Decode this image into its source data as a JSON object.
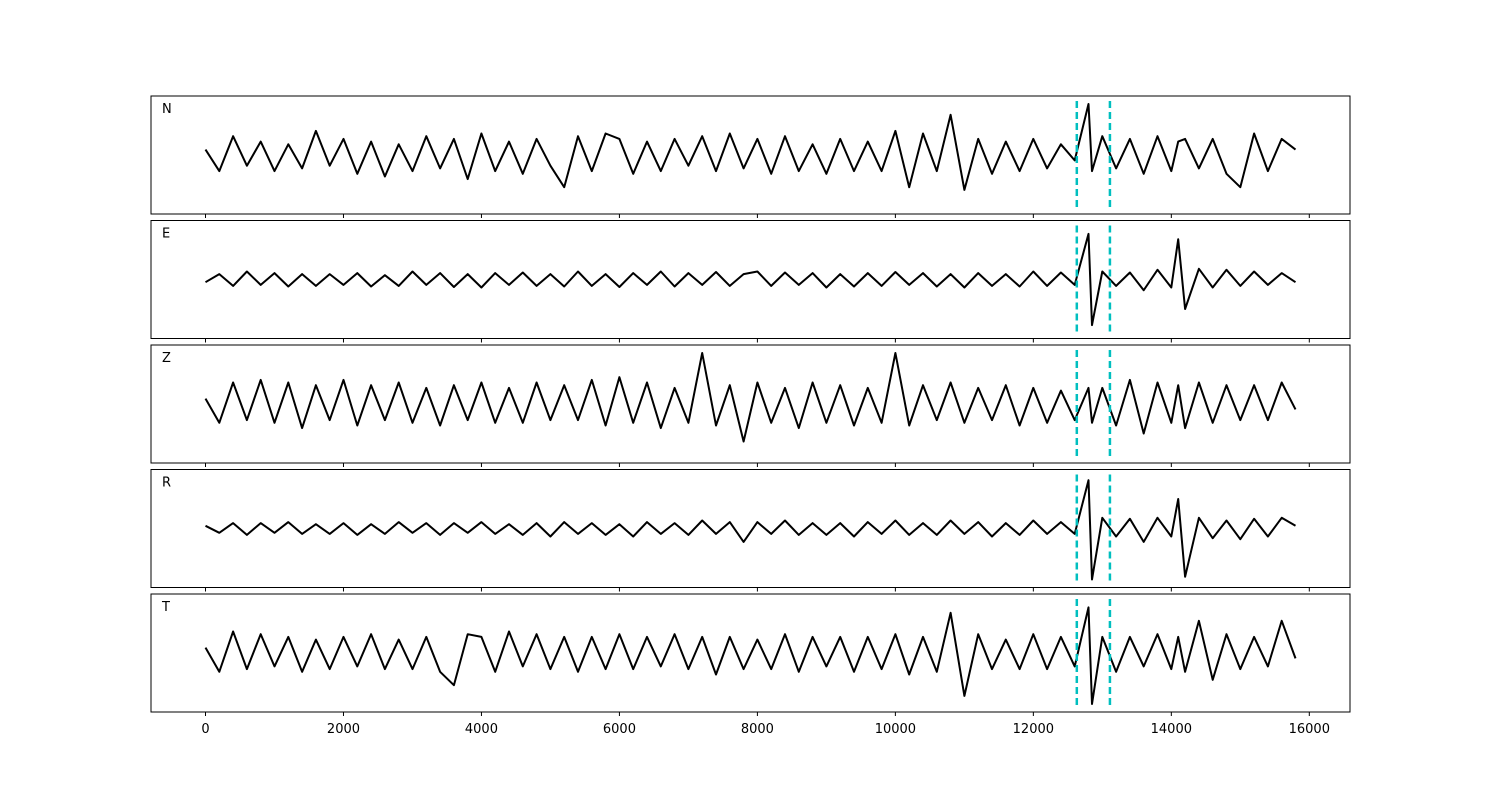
{
  "chart_data": {
    "type": "line",
    "subplots": true,
    "x": [
      0,
      200,
      400,
      600,
      800,
      1000,
      1200,
      1400,
      1600,
      1800,
      2000,
      2200,
      2400,
      2600,
      2800,
      3000,
      3200,
      3400,
      3600,
      3800,
      4000,
      4200,
      4400,
      4600,
      4800,
      5000,
      5200,
      5400,
      5600,
      5800,
      6000,
      6200,
      6400,
      6600,
      6800,
      7000,
      7200,
      7400,
      7600,
      7800,
      8000,
      8200,
      8400,
      8600,
      8800,
      9000,
      9200,
      9400,
      9600,
      9800,
      10000,
      10200,
      10400,
      10600,
      10800,
      11000,
      11200,
      11400,
      11600,
      11800,
      12000,
      12200,
      12400,
      12600,
      12800,
      12850,
      13000,
      13200,
      13400,
      13600,
      13800,
      14000,
      14100,
      14200,
      14400,
      14600,
      14800,
      15000,
      15200,
      15400,
      15600,
      15800
    ],
    "series": [
      {
        "name": "N",
        "color": "#000000",
        "values": [
          0.1,
          -0.3,
          0.35,
          -0.2,
          0.25,
          -0.3,
          0.2,
          -0.25,
          0.45,
          -0.2,
          0.3,
          -0.35,
          0.25,
          -0.4,
          0.2,
          -0.3,
          0.35,
          -0.25,
          0.3,
          -0.45,
          0.4,
          -0.3,
          0.25,
          -0.35,
          0.3,
          -0.2,
          -0.6,
          0.35,
          -0.3,
          0.4,
          0.3,
          -0.35,
          0.25,
          -0.3,
          0.3,
          -0.2,
          0.35,
          -0.3,
          0.4,
          -0.25,
          0.3,
          -0.35,
          0.35,
          -0.3,
          0.2,
          -0.35,
          0.3,
          -0.3,
          0.25,
          -0.3,
          0.45,
          -0.6,
          0.4,
          -0.3,
          0.75,
          -0.65,
          0.3,
          -0.35,
          0.25,
          -0.3,
          0.3,
          -0.25,
          0.2,
          -0.1,
          0.95,
          -0.3,
          0.35,
          -0.25,
          0.3,
          -0.35,
          0.35,
          -0.3,
          0.25,
          0.3,
          -0.25,
          0.3,
          -0.35,
          -0.6,
          0.4,
          -0.3,
          0.3,
          0.1
        ]
      },
      {
        "name": "E",
        "color": "#000000",
        "values": [
          -0.05,
          0.1,
          -0.12,
          0.15,
          -0.1,
          0.12,
          -0.13,
          0.1,
          -0.12,
          0.1,
          -0.1,
          0.12,
          -0.13,
          0.08,
          -0.12,
          0.15,
          -0.1,
          0.12,
          -0.14,
          0.1,
          -0.15,
          0.12,
          -0.1,
          0.13,
          -0.12,
          0.1,
          -0.13,
          0.15,
          -0.12,
          0.1,
          -0.14,
          0.12,
          -0.1,
          0.15,
          -0.13,
          0.12,
          -0.1,
          0.14,
          -0.12,
          0.1,
          0.15,
          -0.12,
          0.13,
          -0.1,
          0.12,
          -0.15,
          0.1,
          -0.13,
          0.12,
          -0.12,
          0.14,
          -0.1,
          0.12,
          -0.13,
          0.1,
          -0.15,
          0.12,
          -0.12,
          0.1,
          -0.13,
          0.15,
          -0.12,
          0.13,
          -0.1,
          0.85,
          -0.85,
          0.15,
          -0.12,
          0.13,
          -0.2,
          0.18,
          -0.15,
          0.75,
          -0.55,
          0.2,
          -0.15,
          0.18,
          -0.12,
          0.15,
          -0.1,
          0.12,
          -0.05
        ]
      },
      {
        "name": "Z",
        "color": "#000000",
        "values": [
          0.1,
          -0.35,
          0.4,
          -0.3,
          0.45,
          -0.35,
          0.4,
          -0.45,
          0.35,
          -0.3,
          0.45,
          -0.4,
          0.35,
          -0.3,
          0.4,
          -0.35,
          0.3,
          -0.4,
          0.35,
          -0.3,
          0.4,
          -0.35,
          0.3,
          -0.35,
          0.4,
          -0.3,
          0.35,
          -0.3,
          0.45,
          -0.4,
          0.5,
          -0.35,
          0.4,
          -0.45,
          0.3,
          -0.35,
          0.95,
          -0.4,
          0.35,
          -0.7,
          0.4,
          -0.35,
          0.3,
          -0.45,
          0.4,
          -0.35,
          0.35,
          -0.4,
          0.3,
          -0.35,
          0.95,
          -0.4,
          0.35,
          -0.3,
          0.4,
          -0.35,
          0.3,
          -0.3,
          0.35,
          -0.4,
          0.3,
          -0.35,
          0.25,
          -0.3,
          0.3,
          -0.35,
          0.3,
          -0.4,
          0.45,
          -0.55,
          0.4,
          -0.35,
          0.35,
          -0.45,
          0.4,
          -0.35,
          0.35,
          -0.3,
          0.35,
          -0.3,
          0.4,
          -0.1
        ]
      },
      {
        "name": "R",
        "color": "#000000",
        "values": [
          0.05,
          -0.08,
          0.1,
          -0.12,
          0.1,
          -0.08,
          0.12,
          -0.1,
          0.08,
          -0.1,
          0.1,
          -0.12,
          0.08,
          -0.1,
          0.12,
          -0.08,
          0.1,
          -0.12,
          0.1,
          -0.08,
          0.12,
          -0.1,
          0.08,
          -0.12,
          0.1,
          -0.15,
          0.12,
          -0.1,
          0.1,
          -0.12,
          0.08,
          -0.15,
          0.12,
          -0.1,
          0.1,
          -0.12,
          0.15,
          -0.1,
          0.12,
          -0.25,
          0.12,
          -0.1,
          0.15,
          -0.12,
          0.1,
          -0.12,
          0.1,
          -0.15,
          0.12,
          -0.1,
          0.15,
          -0.12,
          0.1,
          -0.12,
          0.15,
          -0.1,
          0.12,
          -0.15,
          0.1,
          -0.12,
          0.15,
          -0.1,
          0.12,
          -0.1,
          0.9,
          -0.95,
          0.2,
          -0.15,
          0.18,
          -0.25,
          0.2,
          -0.15,
          0.55,
          -0.9,
          0.2,
          -0.18,
          0.15,
          -0.2,
          0.18,
          -0.15,
          0.2,
          0.05
        ]
      },
      {
        "name": "T",
        "color": "#000000",
        "values": [
          0.1,
          -0.35,
          0.4,
          -0.3,
          0.35,
          -0.25,
          0.3,
          -0.35,
          0.25,
          -0.3,
          0.3,
          -0.25,
          0.35,
          -0.3,
          0.25,
          -0.3,
          0.3,
          -0.35,
          -0.6,
          0.35,
          0.3,
          -0.35,
          0.4,
          -0.25,
          0.35,
          -0.3,
          0.3,
          -0.35,
          0.3,
          -0.3,
          0.35,
          -0.3,
          0.3,
          -0.25,
          0.35,
          -0.3,
          0.3,
          -0.4,
          0.3,
          -0.3,
          0.25,
          -0.3,
          0.35,
          -0.35,
          0.3,
          -0.25,
          0.3,
          -0.35,
          0.3,
          -0.3,
          0.35,
          -0.4,
          0.3,
          -0.35,
          0.75,
          -0.8,
          0.35,
          -0.3,
          0.25,
          -0.3,
          0.35,
          -0.3,
          0.3,
          -0.25,
          0.85,
          -0.95,
          0.3,
          -0.35,
          0.3,
          -0.25,
          0.35,
          -0.3,
          0.3,
          -0.35,
          0.6,
          -0.5,
          0.35,
          -0.3,
          0.3,
          -0.25,
          0.6,
          -0.1
        ]
      }
    ],
    "vlines": [
      12630,
      13110
    ],
    "vline_color": "#00bfbf",
    "xlim": [
      -790,
      16590
    ],
    "xticks": [
      0,
      2000,
      4000,
      6000,
      8000,
      10000,
      12000,
      14000,
      16000
    ],
    "ylim": [
      -1.1,
      1.1
    ]
  }
}
